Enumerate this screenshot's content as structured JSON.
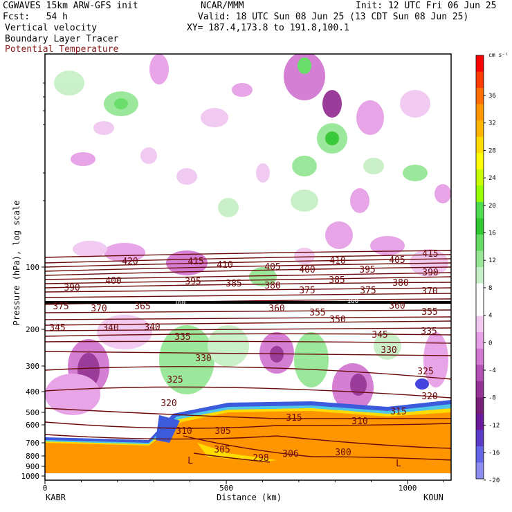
{
  "header": {
    "model": "CGWAVES 15km ARW-GFS init",
    "org": "NCAR/MMM",
    "init": "Init: 12 UTC Fri 06 Jun 25",
    "fcst": "Fcst:   54 h",
    "valid": "Valid: 18 UTC Sun 08 Jun 25 (13 CDT Sun 08 Jun 25)",
    "field1": "Vertical velocity",
    "xy": "XY= 187.4,173.8 to 191.8,100.1",
    "field2": "Boundary Layer Tracer",
    "field3": "Potential Temperature",
    "field3_color": "#8b1a1a"
  },
  "chart_data": {
    "type": "heatmap",
    "xlabel": "Distance (km)",
    "ylabel": "Pressure (hPa), log scale",
    "xlim": [
      0,
      1120
    ],
    "x_ticks": [
      "0",
      "500",
      "1000"
    ],
    "y_scale": "log",
    "y_ticks": [
      "100",
      "200",
      "300",
      "400",
      "500",
      "600",
      "700",
      "800",
      "900",
      "1000"
    ],
    "endpoints": {
      "left": "KABR",
      "right": "KOUN"
    },
    "colorbar": {
      "units": "cm s⁻¹",
      "labels": [
        "36",
        "32",
        "28",
        "24",
        "20",
        "16",
        "12",
        "8",
        "4",
        "0",
        "-4",
        "-8",
        "-12",
        "-16",
        "-20"
      ],
      "colors": [
        "#ff0000",
        "#ff3c00",
        "#ff6e00",
        "#ff9600",
        "#ffb400",
        "#ffdc00",
        "#ffff00",
        "#c8ff00",
        "#96ff00",
        "#50dc50",
        "#30c830",
        "#64dc64",
        "#96e696",
        "#c8f0c8",
        "#ffffff",
        "#ffffff",
        "#f0c8f0",
        "#e6a0e6",
        "#d278d2",
        "#b450b4",
        "#963296",
        "#782078",
        "#6a1a9a",
        "#5a3cc8",
        "#6464e6",
        "#8c8cf0"
      ]
    },
    "theta_contour_labels": [
      "420",
      "415",
      "410",
      "405",
      "400",
      "410",
      "405",
      "415",
      "400",
      "395",
      "385",
      "380",
      "385",
      "395",
      "380",
      "390",
      "390",
      "375",
      "375",
      "370",
      "370",
      "375",
      "365",
      "360",
      "355",
      "350",
      "360",
      "355",
      "345",
      "340",
      "340",
      "345",
      "335",
      "335",
      "330",
      "330",
      "325",
      "325",
      "320",
      "320",
      "315",
      "315",
      "310",
      "310",
      "305",
      "305",
      "300",
      "298",
      "306"
    ],
    "tracer_labels": [
      "L",
      "L"
    ],
    "tropopause_labels": [
      "160",
      "160"
    ]
  }
}
